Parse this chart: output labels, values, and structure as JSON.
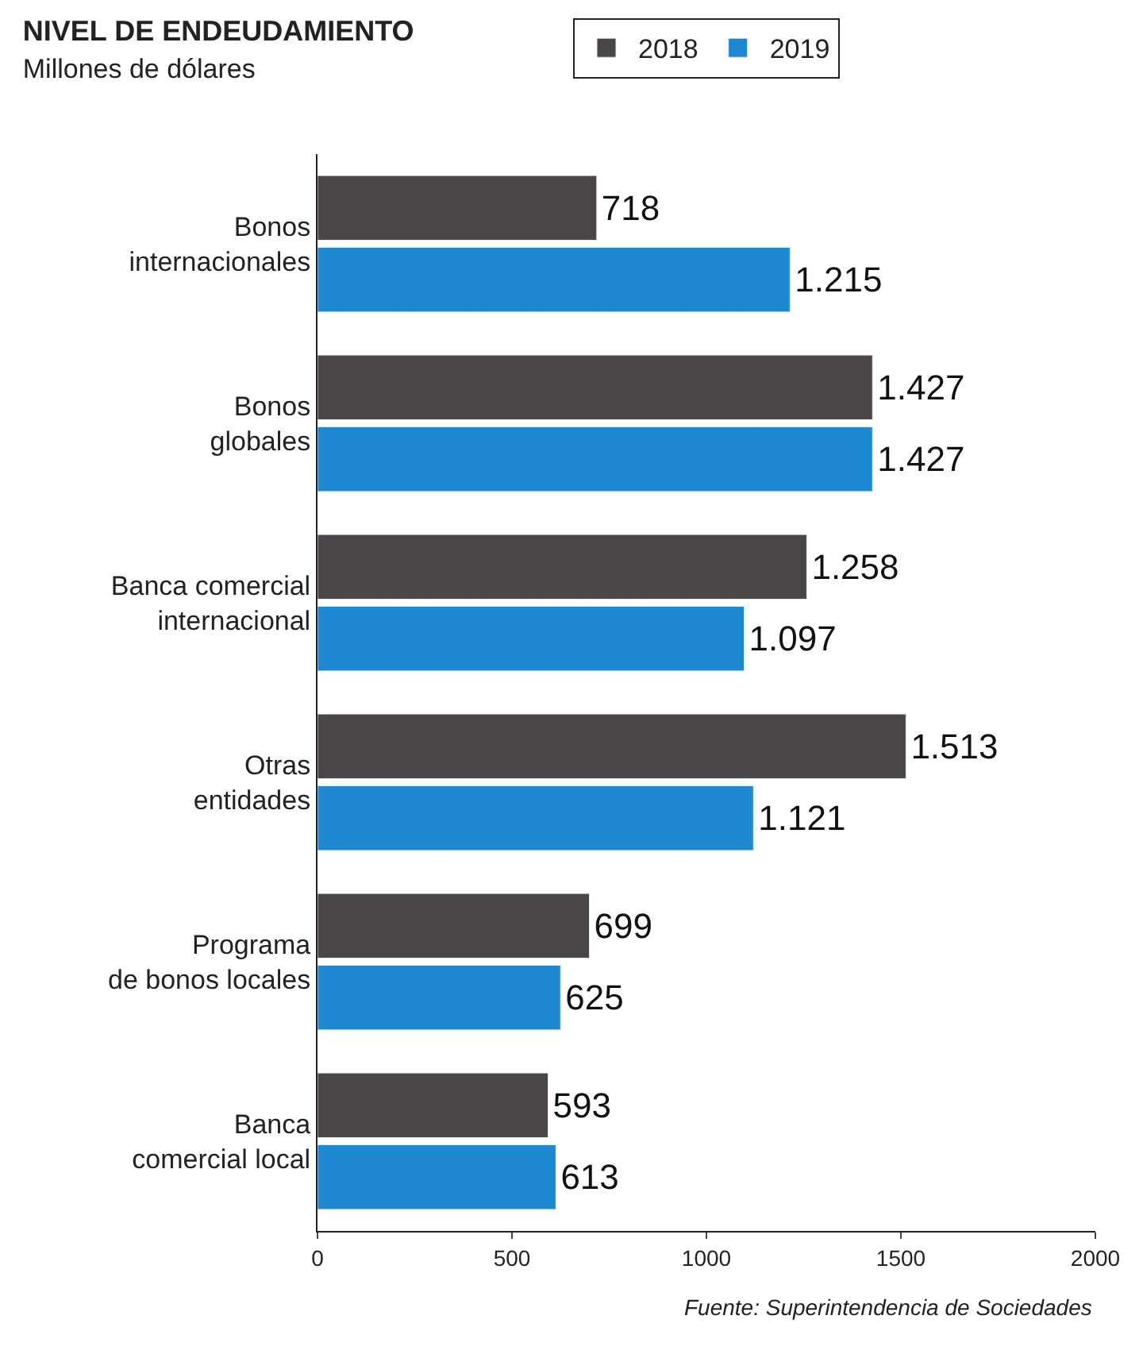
{
  "chart_data": {
    "type": "bar",
    "orientation": "horizontal",
    "title": "NIVEL DE ENDEUDAMIENTO",
    "subtitle": "Millones de dólares",
    "categories": [
      "Bonos\ninternacionales",
      "Bonos\nglobales",
      "Banca comercial\ninternacional",
      "Otras\nentidades",
      "Programa\nde bonos locales",
      "Banca\ncomercial local"
    ],
    "series": [
      {
        "name": "2018",
        "color": "#4a4547",
        "values": [
          718,
          1427,
          1258,
          1513,
          699,
          593
        ],
        "value_labels": [
          "718",
          "1.427",
          "1.258",
          "1.513",
          "699",
          "593"
        ]
      },
      {
        "name": "2019",
        "color": "#1e88d0",
        "values": [
          1215,
          1427,
          1097,
          1121,
          625,
          613
        ],
        "value_labels": [
          "1.215",
          "1.427",
          "1.097",
          "1.121",
          "625",
          "613"
        ]
      }
    ],
    "xlim": [
      0,
      2000
    ],
    "xticks": [
      0,
      500,
      1000,
      1500,
      2000
    ],
    "legend": "top",
    "annotations": [
      "Fuente: Superintendencia de Sociedades"
    ]
  }
}
